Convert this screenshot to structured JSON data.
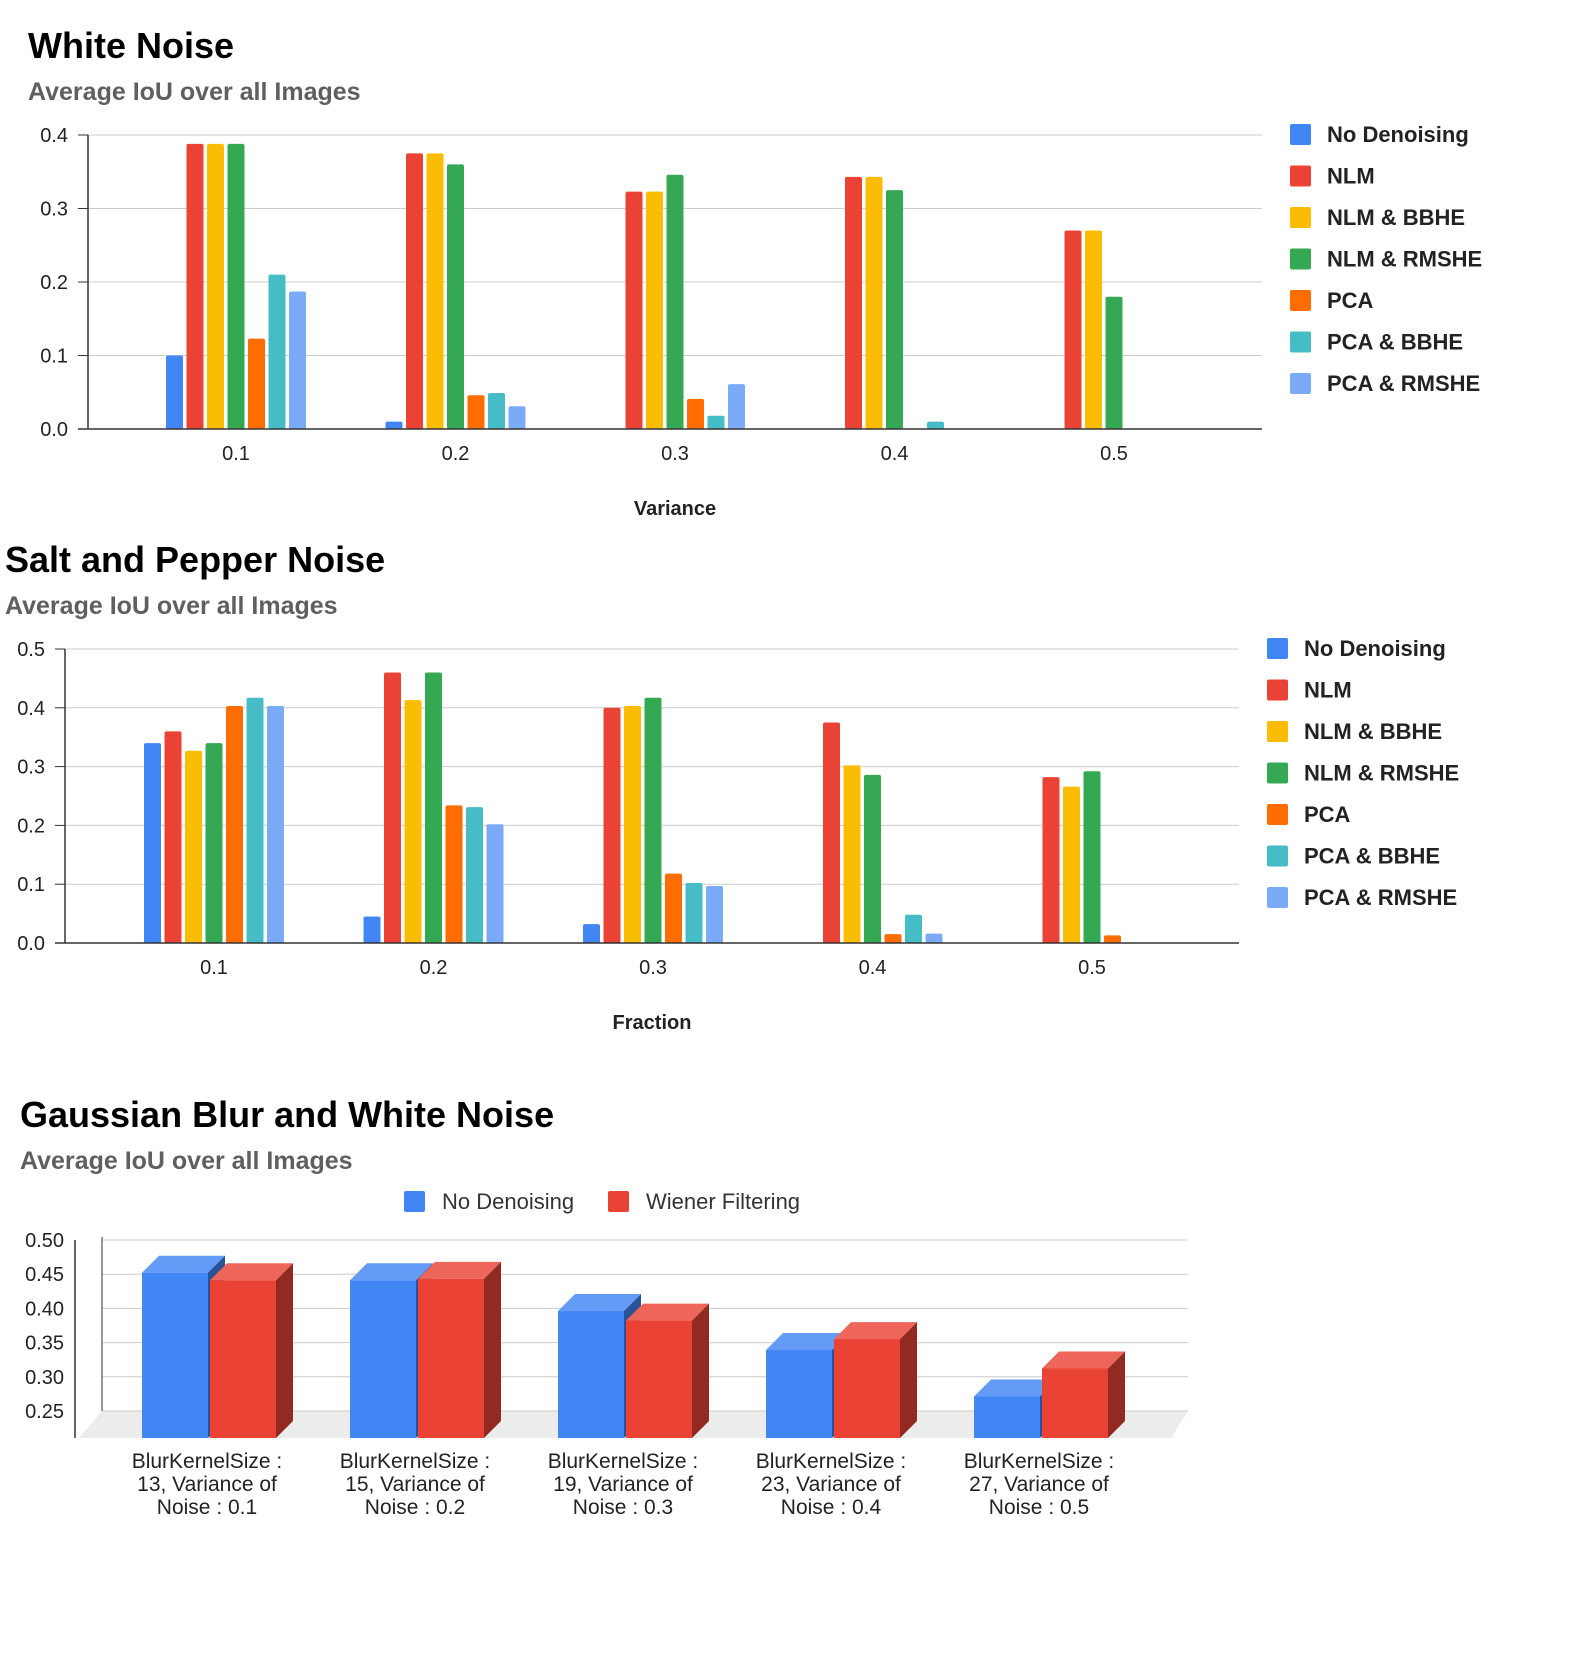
{
  "chart_data": [
    {
      "type": "bar",
      "title": "White Noise",
      "subtitle": "Average IoU over all Images",
      "xlabel": "Variance",
      "ylabel": "",
      "categories": [
        "0.1",
        "0.2",
        "0.3",
        "0.4",
        "0.5"
      ],
      "yticks": [
        "0.0",
        "0.1",
        "0.2",
        "0.3",
        "0.4"
      ],
      "ylim": [
        0,
        0.4
      ],
      "grid": true,
      "legend_position": "right",
      "series": [
        {
          "name": "No Denoising",
          "color": "#4285f4",
          "values": [
            0.1,
            0.01,
            0,
            0,
            0
          ]
        },
        {
          "name": "NLM",
          "color": "#ea4335",
          "values": [
            0.388,
            0.375,
            0.323,
            0.343,
            0.27
          ]
        },
        {
          "name": "NLM & BBHE",
          "color": "#fbbc04",
          "values": [
            0.388,
            0.375,
            0.323,
            0.343,
            0.27
          ]
        },
        {
          "name": "NLM & RMSHE",
          "color": "#34a853",
          "values": [
            0.388,
            0.36,
            0.346,
            0.325,
            0.18
          ]
        },
        {
          "name": "PCA",
          "color": "#ff6d01",
          "values": [
            0.123,
            0.046,
            0.041,
            0,
            0
          ]
        },
        {
          "name": "PCA & BBHE",
          "color": "#46bdc6",
          "values": [
            0.21,
            0.049,
            0.018,
            0.01,
            0
          ]
        },
        {
          "name": "PCA & RMSHE",
          "color": "#7baaf7",
          "values": [
            0.187,
            0.031,
            0.061,
            0,
            0
          ]
        }
      ]
    },
    {
      "type": "bar",
      "title": "Salt and Pepper Noise",
      "subtitle": "Average IoU over all Images",
      "xlabel": "Fraction",
      "ylabel": "",
      "categories": [
        "0.1",
        "0.2",
        "0.3",
        "0.4",
        "0.5"
      ],
      "yticks": [
        "0.0",
        "0.1",
        "0.2",
        "0.3",
        "0.4",
        "0.5"
      ],
      "ylim": [
        0,
        0.5
      ],
      "grid": true,
      "legend_position": "right",
      "series": [
        {
          "name": "No Denoising",
          "color": "#4285f4",
          "values": [
            0.34,
            0.045,
            0.032,
            0,
            0
          ]
        },
        {
          "name": "NLM",
          "color": "#ea4335",
          "values": [
            0.36,
            0.46,
            0.4,
            0.375,
            0.282
          ]
        },
        {
          "name": "NLM & BBHE",
          "color": "#fbbc04",
          "values": [
            0.327,
            0.413,
            0.403,
            0.302,
            0.266
          ]
        },
        {
          "name": "NLM & RMSHE",
          "color": "#34a853",
          "values": [
            0.34,
            0.46,
            0.417,
            0.286,
            0.292
          ]
        },
        {
          "name": "PCA",
          "color": "#ff6d01",
          "values": [
            0.403,
            0.234,
            0.118,
            0.015,
            0.013
          ]
        },
        {
          "name": "PCA & BBHE",
          "color": "#46bdc6",
          "values": [
            0.417,
            0.231,
            0.102,
            0.048,
            0
          ]
        },
        {
          "name": "PCA & RMSHE",
          "color": "#7baaf7",
          "values": [
            0.403,
            0.202,
            0.097,
            0.016,
            0
          ]
        }
      ]
    },
    {
      "type": "bar",
      "title": "Gaussian Blur and White Noise",
      "subtitle": "Average IoU over all Images",
      "xlabel": "",
      "ylabel": "",
      "categories": [
        [
          "BlurKernelSize :",
          "13, Variance of",
          "Noise : 0.1"
        ],
        [
          "BlurKernelSize :",
          "15, Variance of",
          "Noise : 0.2"
        ],
        [
          "BlurKernelSize :",
          "19, Variance of",
          "Noise : 0.3"
        ],
        [
          "BlurKernelSize :",
          "23, Variance of",
          "Noise : 0.4"
        ],
        [
          "BlurKernelSize :",
          "27, Variance of",
          "Noise : 0.5"
        ]
      ],
      "yticks": [
        "0.50",
        "0.45",
        "0.40",
        "0.35",
        "0.30",
        "0.25"
      ],
      "ylim": [
        0.25,
        0.5
      ],
      "grid": true,
      "legend_position": "top",
      "style": "3d",
      "series": [
        {
          "name": "No Denoising",
          "color": "#4285f4",
          "values": [
            0.477,
            0.466,
            0.421,
            0.364,
            0.296
          ]
        },
        {
          "name": "Wiener Filtering",
          "color": "#ea4335",
          "values": [
            0.466,
            0.468,
            0.407,
            0.38,
            0.337
          ]
        }
      ]
    }
  ]
}
